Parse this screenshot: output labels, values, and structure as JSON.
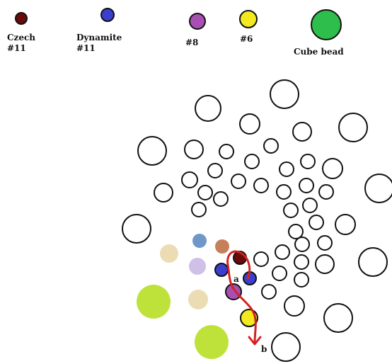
{
  "legend": {
    "czech": {
      "line1": "Czech",
      "line2": "#11",
      "color": "#6b0a0a"
    },
    "dynamite": {
      "line1": "Dynamite",
      "line2": "#11",
      "color": "#3b3fd0"
    },
    "size8": {
      "label": "#8",
      "color": "#a94fb3"
    },
    "size6": {
      "label": "#6",
      "color": "#f2ea1e"
    },
    "cube": {
      "label": "Cube bead",
      "color": "#2ebe4b"
    }
  },
  "labels": {
    "a": "a",
    "b": "b"
  },
  "colors": {
    "outline": "#111111",
    "thread": "#d42222",
    "steel_blue": "#6e98c9",
    "terracotta": "#c5805a",
    "cream": "#ecdcb4",
    "lavender": "#cec0e6",
    "lime": "#bfe23b"
  }
}
